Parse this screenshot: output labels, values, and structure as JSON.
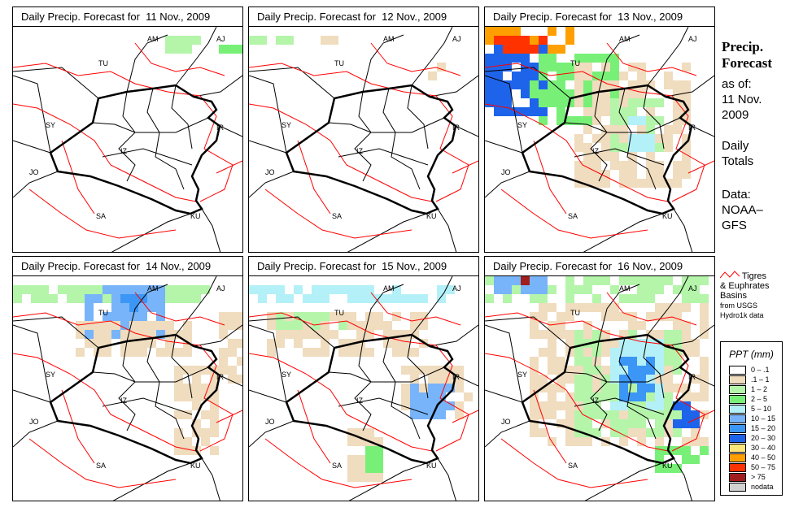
{
  "panels": [
    {
      "title": "Daily Precip. Forecast for  11 Nov., 2009"
    },
    {
      "title": "Daily Precip. Forecast for  12 Nov., 2009"
    },
    {
      "title": "Daily Precip. Forecast for  13 Nov., 2009"
    },
    {
      "title": "Daily Precip. Forecast for  14 Nov., 2009"
    },
    {
      "title": "Daily Precip. Forecast for  15 Nov., 2009"
    },
    {
      "title": "Daily Precip. Forecast for  16 Nov., 2009"
    }
  ],
  "country_labels": [
    "AM",
    "AJ",
    "TU",
    "SY",
    "IR",
    "IZ",
    "JO",
    "SA",
    "KU"
  ],
  "side": {
    "title1": "Precip.",
    "title2": "Forecast",
    "asof": "as of:",
    "date1": "11 Nov.",
    "date2": "2009",
    "daily1": "Daily",
    "daily2": "Totals",
    "data1": "Data:",
    "data2": "NOAA–",
    "data3": "GFS"
  },
  "basin_legend": {
    "line1": "Tigres",
    "line2": "& Euphrates",
    "line3": "Basins",
    "line4": "from USGS",
    "line5": "Hydro1k data",
    "color": "#ff0000"
  },
  "legend": {
    "title": "PPT (mm)",
    "items": [
      {
        "label": "0 – .1",
        "color": "#ffffff"
      },
      {
        "label": ".1 – 1",
        "color": "#f0dcbe"
      },
      {
        "label": "1 – 2",
        "color": "#b4f5aa"
      },
      {
        "label": "2 – 5",
        "color": "#78f078"
      },
      {
        "label": "5 – 10",
        "color": "#b4f0f8"
      },
      {
        "label": "10 – 15",
        "color": "#78b4fa"
      },
      {
        "label": "15 – 20",
        "color": "#3c96f5"
      },
      {
        "label": "20 – 30",
        "color": "#1e64eb"
      },
      {
        "label": "30 – 40",
        "color": "#ffe678"
      },
      {
        "label": "40 – 50",
        "color": "#ffa000"
      },
      {
        "label": "50 – 75",
        "color": "#ff3200"
      },
      {
        "label": "> 75",
        "color": "#a01e1e"
      },
      {
        "label": "nodata",
        "color": "#d2d2d2"
      }
    ]
  }
}
